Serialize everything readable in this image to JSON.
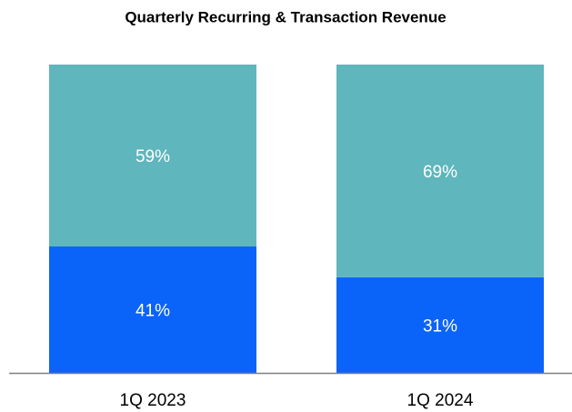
{
  "chart_data": {
    "type": "stacked-bar",
    "title": "Quarterly Recurring & Transaction Revenue",
    "categories": [
      "1Q 2023",
      "1Q 2024"
    ],
    "series": [
      {
        "color": "#0a64fa",
        "values": [
          41,
          31
        ],
        "value_labels": [
          "41%",
          "31%"
        ]
      },
      {
        "color": "#5fb6bc",
        "values": [
          59,
          69
        ],
        "value_labels": [
          "59%",
          "69%"
        ]
      }
    ],
    "ylim": [
      0,
      100
    ]
  }
}
